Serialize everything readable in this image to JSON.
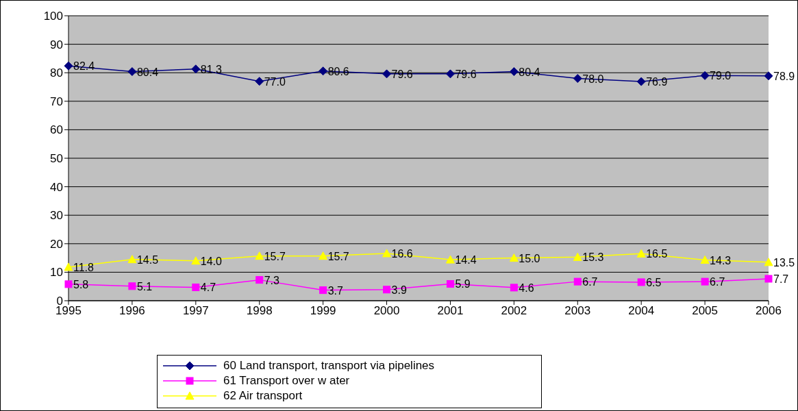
{
  "chart_data": {
    "type": "line",
    "categories": [
      "1995",
      "1996",
      "1997",
      "1998",
      "1999",
      "2000",
      "2001",
      "2002",
      "2003",
      "2004",
      "2005",
      "2006"
    ],
    "ylim": [
      0,
      100
    ],
    "yticks": [
      0,
      10,
      20,
      30,
      40,
      50,
      60,
      70,
      80,
      90,
      100
    ],
    "grid": "y",
    "legend": "bottom",
    "series": [
      {
        "name": "60 Land transport, transport via pipelines",
        "color": "#000080",
        "marker": "diamond",
        "values": [
          82.4,
          80.4,
          81.3,
          77.0,
          80.6,
          79.6,
          79.6,
          80.4,
          78.0,
          76.9,
          79.0,
          78.9
        ],
        "value_labels": [
          "82.4",
          "80.4",
          "81.3",
          "77.0",
          "80.6",
          "79.6",
          "79.6",
          "80.4",
          "78.0",
          "76.9",
          "79.0",
          "78.9"
        ]
      },
      {
        "name": "61 Transport over w ater",
        "color": "#ff00ff",
        "marker": "square",
        "values": [
          5.8,
          5.1,
          4.7,
          7.3,
          3.7,
          3.9,
          5.9,
          4.6,
          6.7,
          6.5,
          6.7,
          7.7
        ],
        "value_labels": [
          "5.8",
          "5.1",
          "4.7",
          "7.3",
          "3.7",
          "3.9",
          "5.9",
          "4.6",
          "6.7",
          "6.5",
          "6.7",
          "7.7"
        ]
      },
      {
        "name": "62 Air transport",
        "color": "#ffff00",
        "marker": "triangle",
        "values": [
          11.8,
          14.5,
          14.0,
          15.7,
          15.7,
          16.6,
          14.4,
          15.0,
          15.3,
          16.5,
          14.3,
          13.5
        ],
        "value_labels": [
          "11.8",
          "14.5",
          "14.0",
          "15.7",
          "15.7",
          "16.6",
          "14.4",
          "15.0",
          "15.3",
          "16.5",
          "14.3",
          "13.5"
        ]
      }
    ]
  }
}
